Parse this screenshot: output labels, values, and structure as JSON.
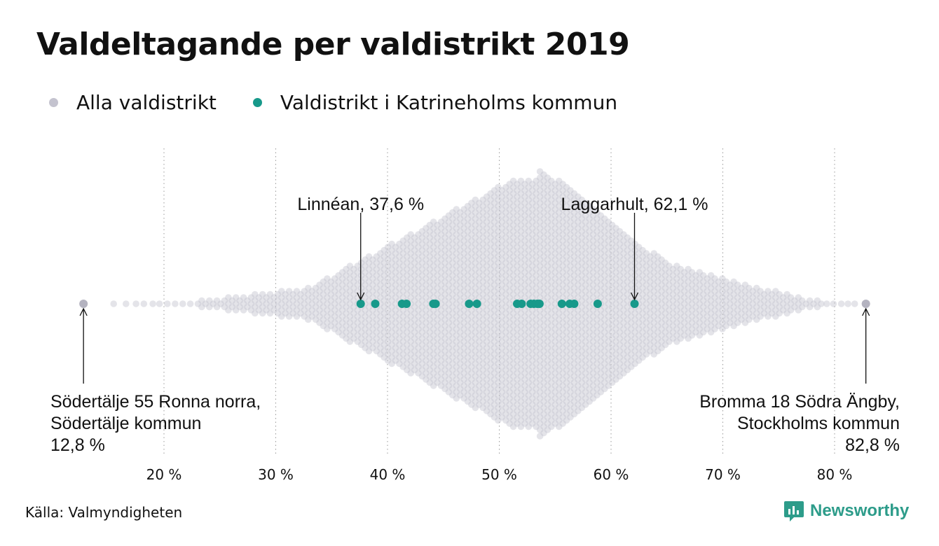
{
  "title": "Valdeltagande per valdistrikt 2019",
  "legend": [
    {
      "label": "Alla valdistrikt",
      "color": "#c4c3cf"
    },
    {
      "label": "Valdistrikt i Katrineholms kommun",
      "color": "#17998a"
    }
  ],
  "source": "Källa: Valmyndigheten",
  "brand": {
    "name": "Newsworthy",
    "icon": "newsworthy-logo-icon",
    "color": "#2d9c8a"
  },
  "chart_data": {
    "type": "scatter",
    "subtype": "beeswarm",
    "x_range": [
      12.8,
      82.8
    ],
    "x_ticks": [
      {
        "value": 20,
        "label": "20 %"
      },
      {
        "value": 30,
        "label": "30 %"
      },
      {
        "value": 40,
        "label": "40 %"
      },
      {
        "value": 50,
        "label": "50 %"
      },
      {
        "value": 60,
        "label": "60 %"
      },
      {
        "value": 70,
        "label": "70 %"
      },
      {
        "value": 80,
        "label": "80 %"
      }
    ],
    "grid": "vertical dotted",
    "series": [
      {
        "name": "Alla valdistrikt",
        "color": "#c4c3cf",
        "extremes": [
          12.8,
          82.8
        ],
        "distribution_peak": 53.5
      },
      {
        "name": "Valdistrikt i Katrineholms kommun",
        "color": "#17998a",
        "values": [
          37.6,
          38.9,
          41.3,
          41.7,
          44.1,
          44.3,
          47.3,
          48.0,
          51.6,
          52.0,
          52.8,
          53.1,
          53.4,
          53.6,
          55.6,
          56.3,
          56.7,
          58.8,
          62.1
        ]
      }
    ],
    "annotations": [
      {
        "lines": [
          "Linnéan, 37,6 %"
        ],
        "value": 37.6,
        "position": "above"
      },
      {
        "lines": [
          "Laggarhult, 62,1 %"
        ],
        "value": 62.1,
        "position": "above"
      },
      {
        "lines": [
          "Södertälje 55 Ronna norra,",
          "Södertälje kommun",
          "12,8 %"
        ],
        "value": 12.8,
        "position": "below-left"
      },
      {
        "lines": [
          "Bromma 18 Södra Ängby,",
          "Stockholms kommun",
          "82,8 %"
        ],
        "value": 82.8,
        "position": "below-right"
      }
    ]
  }
}
